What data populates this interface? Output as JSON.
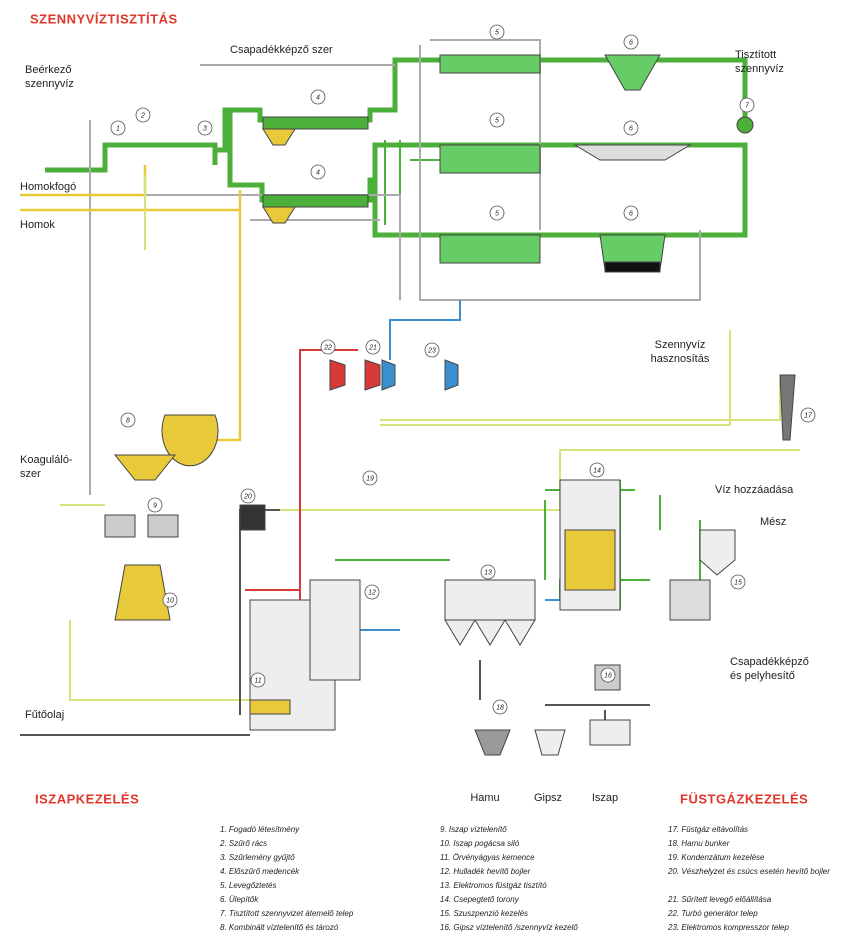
{
  "sections": {
    "water": "SZENNYVÍZTISZTÍTÁS",
    "sludge": "ISZAPKEZELÉS",
    "flue": "FÜSTGÁZKEZELÉS"
  },
  "labels": {
    "inflow": [
      "Beérkező",
      "szennyvíz"
    ],
    "precip": "Csapadékképző szer",
    "treated": [
      "Tisztított",
      "szennyvíz"
    ],
    "sandtrap": "Homokfogó",
    "sand": "Homok",
    "reuse": [
      "Szennyvíz",
      "hasznosítás"
    ],
    "coag": [
      "Koaguláló-",
      "szer"
    ],
    "water_add": "Víz hozzáadása",
    "lime": "Mész",
    "fuel": "Fűtőolaj",
    "floc": [
      "Csapadékképző",
      "és pelyhesítő"
    ],
    "ash": "Hamu",
    "gypsum": "Gipsz",
    "sludge": "Iszap"
  },
  "markers": [
    "1",
    "2",
    "3",
    "4",
    "4",
    "5",
    "5",
    "5",
    "6",
    "6",
    "6",
    "7",
    "8",
    "9",
    "10",
    "11",
    "12",
    "13",
    "14",
    "15",
    "16",
    "17",
    "18",
    "19",
    "20",
    "21",
    "22",
    "23"
  ],
  "legend": [
    "1. Fogadó létesítmény",
    "2. Szűrő rács",
    "3. Szűrlemény gyűjtő",
    "4. Előszűrő medencék",
    "5. Levegőztetés",
    "6. Ülepítők",
    "7. Tisztított szennyvizet átemelő telep",
    "8. Kombinált víztelenítő és tározó",
    "9. Iszap víztelenítő",
    "10. Iszap pogácsa siló",
    "11. Örvényágyas kemence",
    "12. Hulladék hevítő bojler",
    "13. Elektromos füstgáz tisztító",
    "14. Csepegtető torony",
    "15. Szuszpenzió kezelés",
    "16. Gipsz víztelenítő /szennyvíz kezelő",
    "17. Füstgáz eltávolítás",
    "18. Hamu bunker",
    "19. Kondenzátum kezelése",
    "20. Vészhelyzet és csúcs esetén hevítő bojler",
    "21. Sűrített levegő előállítása",
    "22. Turbó generátor telep",
    "23. Elektromos kompresszor telep"
  ]
}
